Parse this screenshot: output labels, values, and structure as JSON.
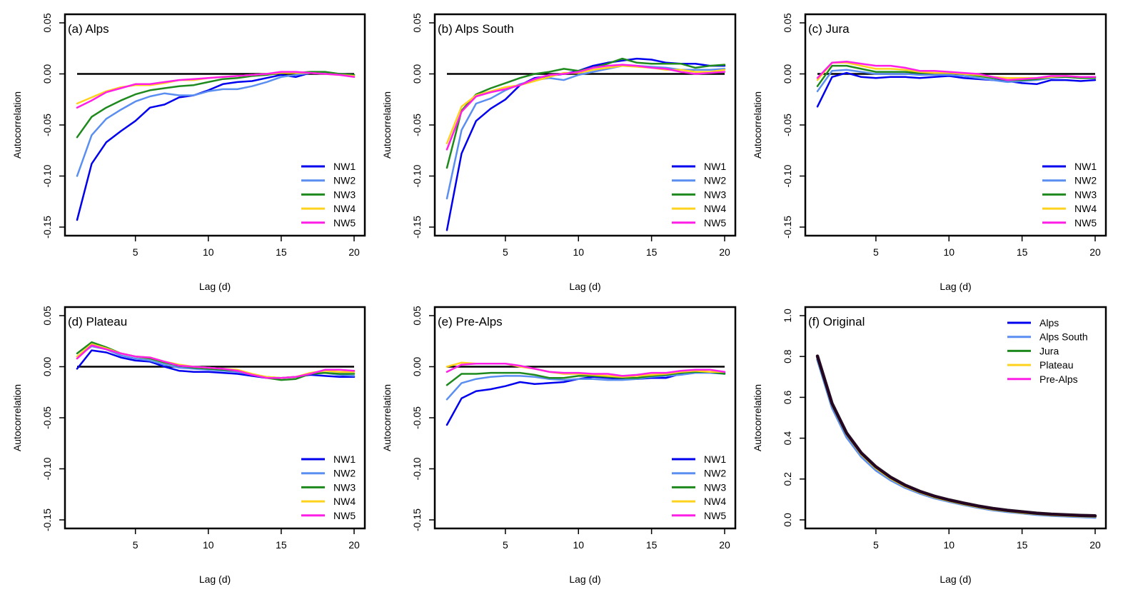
{
  "colors": {
    "NW1": "#0000ee",
    "NW2": "#5a8ef0",
    "NW3": "#1e8a1e",
    "NW4": "#ffd21e",
    "NW5": "#ff1ee6",
    "Alps": "#0000ee",
    "Alps South": "#5a8ef0",
    "Jura": "#1e8a1e",
    "Plateau": "#ffd21e",
    "Pre-Alps": "#ff1ee6",
    "zero_line": "#000000"
  },
  "chart_data": [
    {
      "type": "line",
      "title": "(a) Alps",
      "xlabel": "Lag (d)",
      "ylabel": "Autocorrelation",
      "xlim": [
        1,
        20
      ],
      "ylim": [
        -0.15,
        0.05
      ],
      "xticks": [
        "5",
        "10",
        "15",
        "20"
      ],
      "yticks": [
        "-0.15",
        "-0.10",
        "-0.05",
        "0.00",
        "0.05"
      ],
      "legend": "bottom-right",
      "hline": 0,
      "x": [
        1,
        2,
        3,
        4,
        5,
        6,
        7,
        8,
        9,
        10,
        11,
        12,
        13,
        14,
        15,
        16,
        17,
        18,
        19,
        20
      ],
      "series": [
        {
          "name": "NW1",
          "values": [
            -0.143,
            -0.088,
            -0.067,
            -0.056,
            -0.046,
            -0.033,
            -0.03,
            -0.023,
            -0.021,
            -0.016,
            -0.01,
            -0.008,
            -0.007,
            -0.004,
            -0.001,
            -0.003,
            0.001,
            0.001,
            0.0,
            -0.001
          ]
        },
        {
          "name": "NW2",
          "values": [
            -0.1,
            -0.06,
            -0.044,
            -0.035,
            -0.027,
            -0.022,
            -0.019,
            -0.021,
            -0.021,
            -0.017,
            -0.015,
            -0.015,
            -0.012,
            -0.008,
            -0.003,
            -0.001,
            0.001,
            0.001,
            0.0,
            -0.001
          ]
        },
        {
          "name": "NW3",
          "values": [
            -0.062,
            -0.042,
            -0.033,
            -0.026,
            -0.02,
            -0.016,
            -0.014,
            -0.012,
            -0.011,
            -0.008,
            -0.005,
            -0.004,
            -0.002,
            -0.001,
            0.001,
            0.001,
            0.002,
            0.002,
            0.0,
            -0.001
          ]
        },
        {
          "name": "NW4",
          "values": [
            -0.029,
            -0.023,
            -0.017,
            -0.013,
            -0.011,
            -0.011,
            -0.009,
            -0.006,
            -0.006,
            -0.004,
            -0.003,
            -0.002,
            -0.001,
            0.0,
            0.001,
            0.001,
            0.001,
            0.0,
            -0.001,
            -0.002
          ]
        },
        {
          "name": "NW5",
          "values": [
            -0.033,
            -0.026,
            -0.018,
            -0.014,
            -0.01,
            -0.01,
            -0.008,
            -0.006,
            -0.005,
            -0.004,
            -0.003,
            -0.002,
            -0.001,
            0.0,
            0.002,
            0.002,
            0.001,
            0.0,
            -0.001,
            -0.003
          ]
        }
      ]
    },
    {
      "type": "line",
      "title": "(b) Alps South",
      "xlabel": "Lag (d)",
      "ylabel": "Autocorrelation",
      "xlim": [
        1,
        20
      ],
      "ylim": [
        -0.15,
        0.05
      ],
      "xticks": [
        "5",
        "10",
        "15",
        "20"
      ],
      "yticks": [
        "-0.15",
        "-0.10",
        "-0.05",
        "0.00",
        "0.05"
      ],
      "legend": "bottom-right",
      "hline": 0,
      "x": [
        1,
        2,
        3,
        4,
        5,
        6,
        7,
        8,
        9,
        10,
        11,
        12,
        13,
        14,
        15,
        16,
        17,
        18,
        19,
        20
      ],
      "series": [
        {
          "name": "NW1",
          "values": [
            -0.153,
            -0.078,
            -0.046,
            -0.034,
            -0.025,
            -0.011,
            -0.004,
            -0.002,
            0.0,
            0.003,
            0.008,
            0.011,
            0.013,
            0.015,
            0.014,
            0.011,
            0.01,
            0.01,
            0.008,
            0.008
          ]
        },
        {
          "name": "NW2",
          "values": [
            -0.122,
            -0.055,
            -0.029,
            -0.024,
            -0.016,
            -0.01,
            -0.006,
            -0.004,
            -0.006,
            -0.001,
            0.002,
            0.005,
            0.008,
            0.008,
            0.007,
            0.006,
            0.004,
            0.004,
            0.004,
            0.005
          ]
        },
        {
          "name": "NW3",
          "values": [
            -0.092,
            -0.036,
            -0.02,
            -0.014,
            -0.009,
            -0.004,
            0.0,
            0.002,
            0.005,
            0.003,
            0.006,
            0.01,
            0.015,
            0.011,
            0.01,
            0.01,
            0.01,
            0.006,
            0.008,
            0.009
          ]
        },
        {
          "name": "NW4",
          "values": [
            -0.068,
            -0.032,
            -0.021,
            -0.017,
            -0.013,
            -0.011,
            -0.007,
            -0.003,
            0.001,
            0.001,
            0.004,
            0.006,
            0.008,
            0.007,
            0.006,
            0.004,
            0.004,
            0.002,
            0.002,
            0.004
          ]
        },
        {
          "name": "NW5",
          "values": [
            -0.074,
            -0.037,
            -0.022,
            -0.018,
            -0.015,
            -0.011,
            -0.005,
            -0.001,
            0.0,
            0.002,
            0.006,
            0.008,
            0.009,
            0.008,
            0.006,
            0.005,
            0.002,
            0.0,
            0.001,
            0.002
          ]
        }
      ]
    },
    {
      "type": "line",
      "title": "(c) Jura",
      "xlabel": "Lag (d)",
      "ylabel": "Autocorrelation",
      "xlim": [
        1,
        20
      ],
      "ylim": [
        -0.15,
        0.05
      ],
      "xticks": [
        "5",
        "10",
        "15",
        "20"
      ],
      "yticks": [
        "-0.15",
        "-0.10",
        "-0.05",
        "0.00",
        "0.05"
      ],
      "legend": "bottom-right",
      "hline": 0,
      "x": [
        1,
        2,
        3,
        4,
        5,
        6,
        7,
        8,
        9,
        10,
        11,
        12,
        13,
        14,
        15,
        16,
        17,
        18,
        19,
        20
      ],
      "series": [
        {
          "name": "NW1",
          "values": [
            -0.032,
            -0.003,
            0.001,
            -0.003,
            -0.004,
            -0.003,
            -0.003,
            -0.004,
            -0.003,
            -0.002,
            -0.004,
            -0.005,
            -0.006,
            -0.007,
            -0.009,
            -0.01,
            -0.006,
            -0.006,
            -0.007,
            -0.006
          ]
        },
        {
          "name": "NW2",
          "values": [
            -0.017,
            0.003,
            0.004,
            0.002,
            0.0,
            0.0,
            0.0,
            -0.001,
            -0.001,
            -0.001,
            -0.002,
            -0.004,
            -0.006,
            -0.008,
            -0.007,
            -0.006,
            -0.004,
            -0.003,
            -0.004,
            -0.004
          ]
        },
        {
          "name": "NW3",
          "values": [
            -0.012,
            0.008,
            0.008,
            0.005,
            0.002,
            0.002,
            0.002,
            0.001,
            0.001,
            0.001,
            0.0,
            -0.002,
            -0.004,
            -0.006,
            -0.006,
            -0.005,
            -0.003,
            -0.003,
            -0.004,
            -0.004
          ]
        },
        {
          "name": "NW4",
          "values": [
            -0.006,
            0.011,
            0.011,
            0.008,
            0.005,
            0.005,
            0.004,
            0.002,
            0.001,
            0.001,
            0.0,
            -0.001,
            -0.003,
            -0.004,
            -0.004,
            -0.004,
            -0.003,
            -0.002,
            -0.003,
            -0.003
          ]
        },
        {
          "name": "NW5",
          "values": [
            -0.004,
            0.011,
            0.012,
            0.01,
            0.008,
            0.008,
            0.006,
            0.003,
            0.003,
            0.002,
            0.001,
            0.0,
            -0.003,
            -0.006,
            -0.005,
            -0.004,
            -0.002,
            -0.002,
            -0.003,
            -0.003
          ]
        }
      ]
    },
    {
      "type": "line",
      "title": "(d) Plateau",
      "xlabel": "Lag (d)",
      "ylabel": "Autocorrelation",
      "xlim": [
        1,
        20
      ],
      "ylim": [
        -0.15,
        0.05
      ],
      "xticks": [
        "5",
        "10",
        "15",
        "20"
      ],
      "yticks": [
        "-0.15",
        "-0.10",
        "-0.05",
        "0.00",
        "0.05"
      ],
      "legend": "bottom-right",
      "hline": 0,
      "x": [
        1,
        2,
        3,
        4,
        5,
        6,
        7,
        8,
        9,
        10,
        11,
        12,
        13,
        14,
        15,
        16,
        17,
        18,
        19,
        20
      ],
      "series": [
        {
          "name": "NW1",
          "values": [
            -0.002,
            0.016,
            0.014,
            0.009,
            0.006,
            0.005,
            0.0,
            -0.004,
            -0.005,
            -0.005,
            -0.006,
            -0.007,
            -0.009,
            -0.011,
            -0.011,
            -0.01,
            -0.008,
            -0.009,
            -0.01,
            -0.01
          ]
        },
        {
          "name": "NW2",
          "values": [
            0.01,
            0.02,
            0.017,
            0.011,
            0.008,
            0.006,
            0.002,
            -0.001,
            -0.002,
            -0.003,
            -0.004,
            -0.005,
            -0.008,
            -0.01,
            -0.011,
            -0.01,
            -0.007,
            -0.006,
            -0.008,
            -0.009
          ]
        },
        {
          "name": "NW3",
          "values": [
            0.013,
            0.024,
            0.019,
            0.013,
            0.01,
            0.008,
            0.004,
            0.001,
            -0.001,
            -0.002,
            -0.003,
            -0.004,
            -0.008,
            -0.011,
            -0.013,
            -0.012,
            -0.007,
            -0.006,
            -0.007,
            -0.007
          ]
        },
        {
          "name": "NW4",
          "values": [
            0.01,
            0.022,
            0.018,
            0.013,
            0.01,
            0.009,
            0.005,
            0.002,
            0.0,
            -0.001,
            -0.002,
            -0.003,
            -0.007,
            -0.01,
            -0.011,
            -0.01,
            -0.006,
            -0.004,
            -0.005,
            -0.005
          ]
        },
        {
          "name": "NW5",
          "values": [
            0.008,
            0.021,
            0.017,
            0.013,
            0.01,
            0.009,
            0.005,
            0.001,
            0.0,
            -0.001,
            -0.002,
            -0.004,
            -0.008,
            -0.011,
            -0.011,
            -0.01,
            -0.007,
            -0.003,
            -0.003,
            -0.004
          ]
        }
      ]
    },
    {
      "type": "line",
      "title": "(e) Pre-Alps",
      "xlabel": "Lag (d)",
      "ylabel": "Autocorrelation",
      "xlim": [
        1,
        20
      ],
      "ylim": [
        -0.15,
        0.05
      ],
      "xticks": [
        "5",
        "10",
        "15",
        "20"
      ],
      "yticks": [
        "-0.15",
        "-0.10",
        "-0.05",
        "0.00",
        "0.05"
      ],
      "legend": "bottom-right",
      "hline": 0,
      "x": [
        1,
        2,
        3,
        4,
        5,
        6,
        7,
        8,
        9,
        10,
        11,
        12,
        13,
        14,
        15,
        16,
        17,
        18,
        19,
        20
      ],
      "series": [
        {
          "name": "NW1",
          "values": [
            -0.057,
            -0.031,
            -0.024,
            -0.022,
            -0.019,
            -0.015,
            -0.017,
            -0.016,
            -0.015,
            -0.012,
            -0.01,
            -0.011,
            -0.012,
            -0.012,
            -0.011,
            -0.011,
            -0.007,
            -0.005,
            -0.005,
            -0.006
          ]
        },
        {
          "name": "NW2",
          "values": [
            -0.032,
            -0.016,
            -0.012,
            -0.01,
            -0.009,
            -0.009,
            -0.01,
            -0.012,
            -0.013,
            -0.012,
            -0.012,
            -0.013,
            -0.013,
            -0.012,
            -0.01,
            -0.009,
            -0.008,
            -0.006,
            -0.006,
            -0.007
          ]
        },
        {
          "name": "NW3",
          "values": [
            -0.018,
            -0.007,
            -0.007,
            -0.006,
            -0.006,
            -0.006,
            -0.008,
            -0.011,
            -0.011,
            -0.009,
            -0.009,
            -0.01,
            -0.011,
            -0.011,
            -0.009,
            -0.008,
            -0.006,
            -0.005,
            -0.005,
            -0.007
          ]
        },
        {
          "name": "NW4",
          "values": [
            0.0,
            0.004,
            0.003,
            0.003,
            0.003,
            0.0,
            -0.002,
            -0.005,
            -0.007,
            -0.007,
            -0.008,
            -0.009,
            -0.01,
            -0.009,
            -0.008,
            -0.007,
            -0.005,
            -0.004,
            -0.005,
            -0.005
          ]
        },
        {
          "name": "NW5",
          "values": [
            -0.005,
            0.002,
            0.003,
            0.003,
            0.003,
            0.001,
            -0.002,
            -0.005,
            -0.006,
            -0.006,
            -0.007,
            -0.007,
            -0.009,
            -0.008,
            -0.006,
            -0.006,
            -0.004,
            -0.003,
            -0.003,
            -0.005
          ]
        }
      ]
    },
    {
      "type": "line",
      "title": "(f) Original",
      "xlabel": "Lag (d)",
      "ylabel": "Autocorrelation",
      "xlim": [
        1,
        20
      ],
      "ylim": [
        0,
        1.0
      ],
      "xticks": [
        "5",
        "10",
        "15",
        "20"
      ],
      "yticks": [
        "0.0",
        "0.2",
        "0.4",
        "0.6",
        "0.8",
        "1.0"
      ],
      "legend": "top-right",
      "hline": null,
      "x": [
        1,
        2,
        3,
        4,
        5,
        6,
        7,
        8,
        9,
        10,
        11,
        12,
        13,
        14,
        15,
        16,
        17,
        18,
        19,
        20
      ],
      "series": [
        {
          "name": "Alps",
          "values": [
            0.795,
            0.56,
            0.415,
            0.318,
            0.25,
            0.2,
            0.162,
            0.133,
            0.11,
            0.092,
            0.076,
            0.062,
            0.05,
            0.042,
            0.035,
            0.028,
            0.023,
            0.02,
            0.017,
            0.015
          ]
        },
        {
          "name": "Alps South",
          "values": [
            0.785,
            0.55,
            0.405,
            0.31,
            0.243,
            0.195,
            0.158,
            0.13,
            0.107,
            0.09,
            0.074,
            0.06,
            0.048,
            0.04,
            0.033,
            0.026,
            0.021,
            0.018,
            0.015,
            0.012
          ]
        },
        {
          "name": "Jura",
          "values": [
            0.8,
            0.568,
            0.422,
            0.325,
            0.257,
            0.206,
            0.167,
            0.138,
            0.114,
            0.096,
            0.08,
            0.066,
            0.054,
            0.045,
            0.038,
            0.031,
            0.026,
            0.023,
            0.02,
            0.018
          ]
        },
        {
          "name": "Plateau",
          "values": [
            0.798,
            0.565,
            0.42,
            0.322,
            0.254,
            0.204,
            0.165,
            0.136,
            0.112,
            0.094,
            0.078,
            0.064,
            0.052,
            0.044,
            0.036,
            0.03,
            0.025,
            0.022,
            0.019,
            0.017
          ]
        },
        {
          "name": "Pre-Alps",
          "values": [
            0.802,
            0.57,
            0.425,
            0.328,
            0.26,
            0.209,
            0.17,
            0.14,
            0.116,
            0.098,
            0.082,
            0.068,
            0.056,
            0.047,
            0.04,
            0.033,
            0.028,
            0.025,
            0.022,
            0.02
          ]
        }
      ]
    }
  ]
}
